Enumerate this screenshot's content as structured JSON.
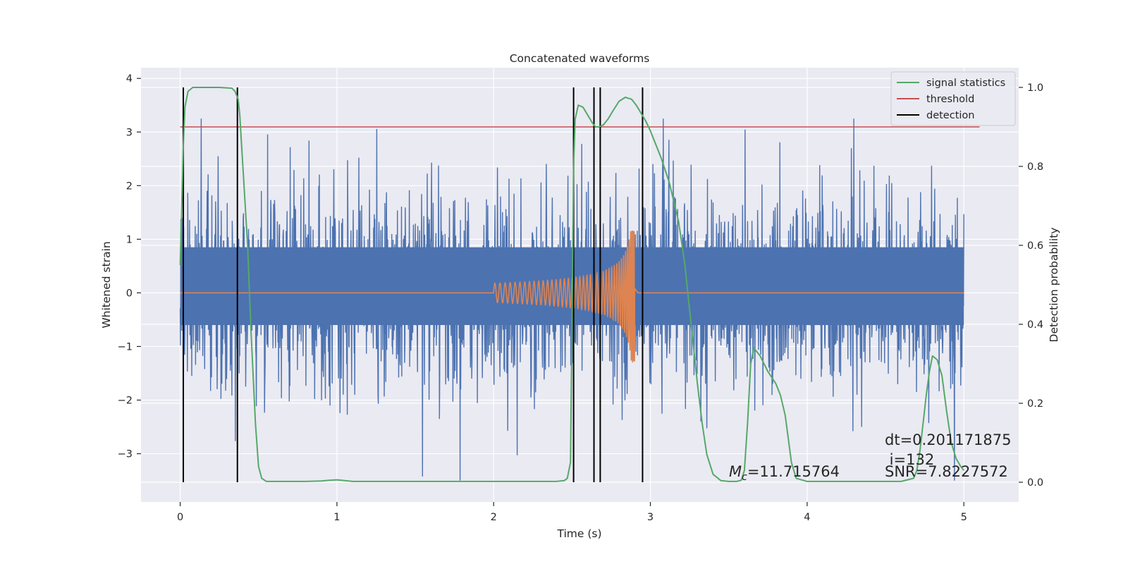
{
  "chart_data": {
    "type": "line",
    "title": "Concatenated waveforms",
    "xlabel": "Time (s)",
    "ylabel_left": "Whitened strain",
    "ylabel_right": "Detection probability",
    "xlim": [
      -0.25,
      5.35
    ],
    "ylim_left": [
      -3.9,
      4.2
    ],
    "ylim_right": [
      -0.05,
      1.05
    ],
    "x_ticks": [
      0,
      1,
      2,
      3,
      4,
      5
    ],
    "y_ticks_left": [
      -3,
      -2,
      -1,
      0,
      1,
      2,
      3,
      4
    ],
    "y_ticks_right": [
      0.0,
      0.2,
      0.4,
      0.6,
      0.8,
      1.0
    ],
    "x_tick_labels": [
      "0",
      "1",
      "2",
      "3",
      "4",
      "5"
    ],
    "y_tick_labels_left": [
      "−3",
      "−2",
      "−1",
      "0",
      "1",
      "2",
      "3",
      "4"
    ],
    "y_tick_labels_right": [
      "0.0",
      "0.2",
      "0.4",
      "0.6",
      "0.8",
      "1.0"
    ],
    "grid": true,
    "legend_position": "top-right",
    "colors": {
      "background": "#eaeaf2",
      "grid": "#ffffff",
      "strain": "#4c72b0",
      "template": "#dd8452",
      "signal_statistics": "#55a868",
      "threshold": "#c44e52",
      "detection": "#000000"
    },
    "series": [
      {
        "name": "signal statistics",
        "axis": "right",
        "x": [
          0.0,
          0.01,
          0.02,
          0.03,
          0.05,
          0.08,
          0.1,
          0.15,
          0.25,
          0.33,
          0.35,
          0.37,
          0.38,
          0.4,
          0.43,
          0.45,
          0.48,
          0.5,
          0.52,
          0.55,
          0.6,
          0.7,
          0.8,
          0.9,
          0.95,
          1.0,
          1.03,
          1.1,
          1.2,
          1.5,
          2.0,
          2.2,
          2.4,
          2.45,
          2.47,
          2.49,
          2.5,
          2.51,
          2.52,
          2.54,
          2.57,
          2.6,
          2.63,
          2.65,
          2.67,
          2.7,
          2.73,
          2.76,
          2.8,
          2.84,
          2.88,
          2.91,
          2.94,
          2.97,
          3.0,
          3.03,
          3.07,
          3.12,
          3.18,
          3.22,
          3.26,
          3.3,
          3.33,
          3.36,
          3.4,
          3.45,
          3.5,
          3.55,
          3.58,
          3.6,
          3.62,
          3.64,
          3.66,
          3.7,
          3.75,
          3.8,
          3.83,
          3.86,
          3.88,
          3.9,
          3.93,
          4.0,
          4.3,
          4.6,
          4.68,
          4.7,
          4.72,
          4.74,
          4.76,
          4.78,
          4.8,
          4.83,
          4.86,
          4.89,
          4.92,
          4.95,
          4.98,
          5.0
        ],
        "y": [
          0.55,
          0.7,
          0.85,
          0.95,
          0.99,
          1.0,
          1.0,
          1.0,
          1.0,
          0.998,
          0.99,
          0.97,
          0.93,
          0.8,
          0.6,
          0.4,
          0.15,
          0.04,
          0.01,
          0.002,
          0.002,
          0.002,
          0.002,
          0.003,
          0.005,
          0.006,
          0.005,
          0.002,
          0.002,
          0.002,
          0.002,
          0.002,
          0.002,
          0.004,
          0.01,
          0.05,
          0.4,
          0.8,
          0.92,
          0.955,
          0.95,
          0.93,
          0.91,
          0.9,
          0.9,
          0.905,
          0.92,
          0.94,
          0.965,
          0.975,
          0.97,
          0.955,
          0.935,
          0.915,
          0.89,
          0.86,
          0.82,
          0.76,
          0.66,
          0.55,
          0.4,
          0.25,
          0.15,
          0.07,
          0.02,
          0.004,
          0.002,
          0.002,
          0.005,
          0.03,
          0.15,
          0.3,
          0.34,
          0.32,
          0.28,
          0.25,
          0.22,
          0.17,
          0.11,
          0.05,
          0.01,
          0.002,
          0.002,
          0.002,
          0.01,
          0.03,
          0.08,
          0.15,
          0.22,
          0.28,
          0.32,
          0.31,
          0.27,
          0.18,
          0.1,
          0.06,
          0.04,
          0.03
        ]
      },
      {
        "name": "threshold",
        "axis": "right",
        "x": [
          0.0,
          5.1
        ],
        "y": [
          0.9,
          0.9
        ]
      },
      {
        "name": "detection",
        "axis": "right",
        "vlines_x": [
          0.02,
          0.365,
          2.51,
          2.64,
          2.68,
          2.95
        ],
        "ymin": 0.0,
        "ymax": 1.0
      }
    ],
    "strain_series": {
      "axis": "left",
      "x_range": [
        0,
        5
      ],
      "dense_band": [
        -0.6,
        0.85
      ],
      "typical_extremes": [
        -2.5,
        2.5
      ],
      "max_spike": 3.25,
      "min_spike": -3.5
    },
    "template_series": {
      "axis": "left",
      "chirp_start": 2.0,
      "merger": 2.9,
      "start_amplitude": 0.18,
      "peak_amplitude": 1.15,
      "min_amplitude": -1.35
    },
    "legend": [
      "signal statistics",
      "threshold",
      "detection"
    ],
    "annotations": {
      "mc_symbol": "M",
      "mc_subscript": "c",
      "mc_value": "=11.715764",
      "dt": "dt=0.201171875",
      "i": " i=132",
      "snr": "SNR=7.8227572"
    }
  }
}
